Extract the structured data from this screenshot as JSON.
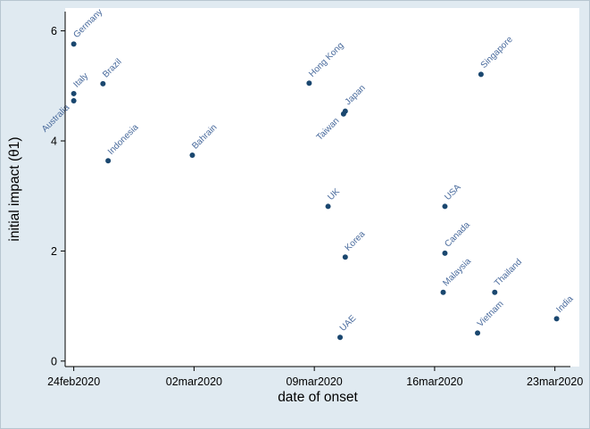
{
  "figure": {
    "background_color": "#e0eaf1",
    "plot_background_color": "#ffffff"
  },
  "chart_data": {
    "type": "scatter",
    "title": "",
    "xlabel": "date of onset",
    "ylabel": "initial impact (θ1)",
    "marker_color": "#1a476f",
    "label_color": "#46689b",
    "axis_color": "#000000",
    "x_axis_unit": "days since 24feb2020",
    "x_ticks": [
      {
        "day": 0,
        "label": "24feb2020"
      },
      {
        "day": 7,
        "label": "02mar2020"
      },
      {
        "day": 14,
        "label": "09mar2020"
      },
      {
        "day": 21,
        "label": "16mar2020"
      },
      {
        "day": 28,
        "label": "23mar2020"
      }
    ],
    "y_ticks": [
      0,
      2,
      4,
      6
    ],
    "x_range_days": [
      -0.5,
      28.9
    ],
    "y_range": [
      0,
      6.35
    ],
    "grid": false,
    "legend": "none",
    "points": [
      {
        "label": "Germany",
        "day": 0,
        "value": 5.76,
        "label_side": "above"
      },
      {
        "label": "Italy",
        "day": 0,
        "value": 4.86,
        "label_side": "above"
      },
      {
        "label": "Australia",
        "day": 0,
        "value": 4.73,
        "label_side": "below"
      },
      {
        "label": "Brazil",
        "day": 1.7,
        "value": 5.04,
        "label_side": "above"
      },
      {
        "label": "Indonesia",
        "day": 2.0,
        "value": 3.64,
        "label_side": "above"
      },
      {
        "label": "Bahrain",
        "day": 6.9,
        "value": 3.74,
        "label_side": "above"
      },
      {
        "label": "Hong Kong",
        "day": 13.7,
        "value": 5.05,
        "label_side": "above"
      },
      {
        "label": "UK",
        "day": 14.8,
        "value": 2.81,
        "label_side": "above"
      },
      {
        "label": "Japan",
        "day": 15.8,
        "value": 4.54,
        "label_side": "above"
      },
      {
        "label": "Taiwan",
        "day": 15.7,
        "value": 4.49,
        "label_side": "below"
      },
      {
        "label": "Korea",
        "day": 15.8,
        "value": 1.89,
        "label_side": "above"
      },
      {
        "label": "UAE",
        "day": 15.5,
        "value": 0.43,
        "label_side": "above"
      },
      {
        "label": "USA",
        "day": 21.6,
        "value": 2.81,
        "label_side": "above"
      },
      {
        "label": "Canada",
        "day": 21.6,
        "value": 1.96,
        "label_side": "above"
      },
      {
        "label": "Malaysia",
        "day": 21.5,
        "value": 1.25,
        "label_side": "above"
      },
      {
        "label": "Singapore",
        "day": 23.7,
        "value": 5.21,
        "label_side": "above"
      },
      {
        "label": "Vietnam",
        "day": 23.5,
        "value": 0.51,
        "label_side": "above"
      },
      {
        "label": "Thailand",
        "day": 24.5,
        "value": 1.25,
        "label_side": "above"
      },
      {
        "label": "India",
        "day": 28.1,
        "value": 0.77,
        "label_side": "above"
      }
    ]
  }
}
